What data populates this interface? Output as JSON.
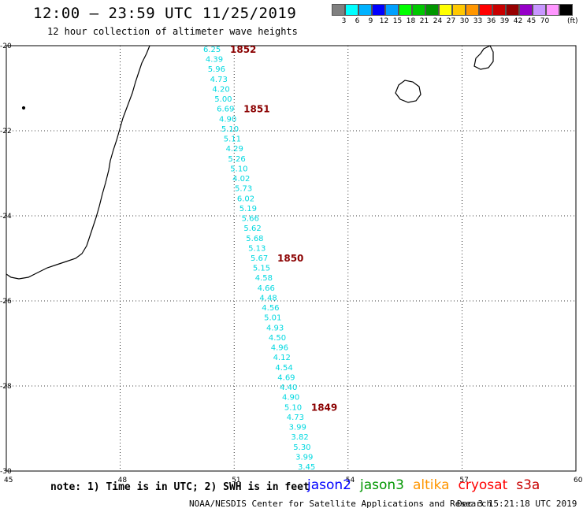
{
  "title": "12:00 – 23:59 UTC 11/25/2019",
  "subtitle": "12 hour collection of altimeter wave heights",
  "legend": {
    "colors": [
      "#808080",
      "#00ffff",
      "#00b2ff",
      "#0000ff",
      "#00a0ff",
      "#00ff00",
      "#00c800",
      "#009600",
      "#ffff00",
      "#ffc800",
      "#ff9600",
      "#ff0000",
      "#c80000",
      "#960000",
      "#9600c8",
      "#c896ff",
      "#ff96ff",
      "#000000"
    ],
    "labels": [
      "3",
      "6",
      "9",
      "12",
      "15",
      "18",
      "21",
      "24",
      "27",
      "30",
      "33",
      "36",
      "39",
      "42",
      "45",
      "70"
    ],
    "unit": "(ft)"
  },
  "axes": {
    "lon_ticks": [
      "45",
      "48",
      "51",
      "54",
      "57",
      "60"
    ],
    "lat_ticks": [
      "-20",
      "-22",
      "-24",
      "-26",
      "-28",
      "-30"
    ]
  },
  "track": {
    "color": "#00d8e0",
    "values": [
      "6.25",
      "4.39",
      "5.96",
      "4.73",
      "4.20",
      "5.00",
      "6.69",
      "4.90",
      "5.10",
      "5.11",
      "4.29",
      "5.26",
      "5.10",
      "4.02",
      "5.73",
      "6.02",
      "5.19",
      "5.66",
      "5.62",
      "5.68",
      "5.13",
      "5.67",
      "5.15",
      "4.58",
      "4.66",
      "4.48",
      "4.56",
      "5.01",
      "4.93",
      "4.50",
      "4.96",
      "4.12",
      "4.54",
      "4.69",
      "4.40",
      "4.90",
      "5.10",
      "4.73",
      "3.99",
      "3.82",
      "5.30",
      "3.99",
      "3.45"
    ]
  },
  "time_labels": [
    {
      "text": "1852"
    },
    {
      "text": "1851"
    },
    {
      "text": "1850"
    },
    {
      "text": "1849"
    }
  ],
  "footer": {
    "note": "note: 1) Time is in UTC; 2) SWH is in feet",
    "satellites": [
      {
        "name": "jason2",
        "color": "#0000ff"
      },
      {
        "name": "jason3",
        "color": "#009600"
      },
      {
        "name": "altika",
        "color": "#ff9600"
      },
      {
        "name": "cryosat",
        "color": "#ff0000"
      },
      {
        "name": "s3a",
        "color": "#c80000"
      }
    ],
    "credit": "NOAA/NESDIS Center for Satellite Applications and Research",
    "timestamp": "Dec  3 15:21:18 UTC 2019"
  }
}
